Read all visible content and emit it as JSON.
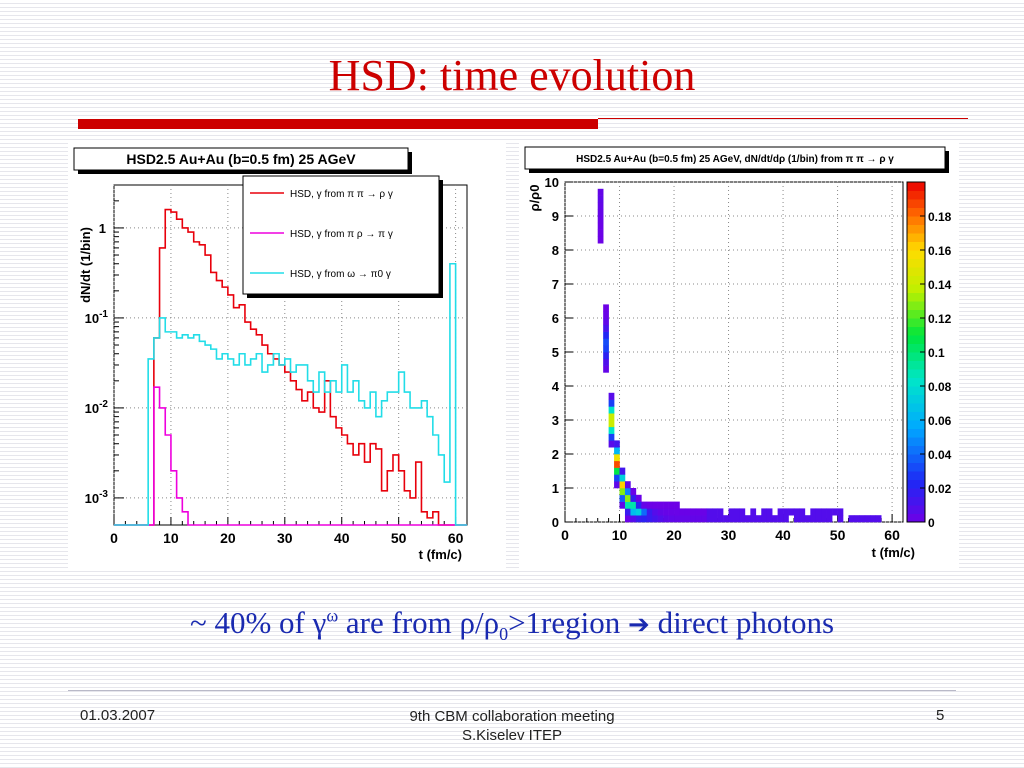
{
  "slide": {
    "title": "HSD: time evolution",
    "caption": {
      "prefix": "~ 40% of ",
      "gamma": "γ",
      "omega_sup": "ω",
      "mid": " are from ρ/ρ",
      "sub0": "0",
      "suffix": ">1region ",
      "arrow": "➔",
      "tail": " direct photons"
    },
    "footer": {
      "date": "01.03.2007",
      "event_line1": "9th CBM collaboration meeting",
      "event_line2": "S.Kiselev ITEP",
      "page": "5"
    },
    "accent_color": "#cc0000",
    "caption_color": "#1a2ab0"
  },
  "chart_data": [
    {
      "type": "line",
      "title": "HSD2.5 Au+Au (b=0.5 fm) 25 AGeV",
      "xlabel": "t (fm/c)",
      "ylabel": "dN/dt (1/bin)",
      "xlim": [
        0,
        62
      ],
      "ylim": [
        0.0005,
        3
      ],
      "yscale": "log",
      "x_ticks": [
        "0",
        "10",
        "20",
        "30",
        "40",
        "50",
        "60"
      ],
      "y_ticks": [
        "10-3",
        "10-2",
        "10-1",
        "1"
      ],
      "grid": true,
      "legend_position": "top-right",
      "bin_width": 1,
      "series": [
        {
          "name": "HSD, γ from π π → ρ γ",
          "color": "#e8000b",
          "x": [
            5,
            6,
            7,
            8,
            9,
            10,
            11,
            12,
            13,
            14,
            15,
            16,
            17,
            18,
            19,
            20,
            21,
            22,
            23,
            24,
            25,
            26,
            27,
            28,
            29,
            30,
            31,
            32,
            33,
            34,
            35,
            36,
            37,
            38,
            39,
            40,
            41,
            42,
            43,
            44,
            45,
            46,
            47,
            48,
            49,
            50,
            51,
            52,
            53,
            54,
            55,
            56,
            57,
            58,
            59,
            60
          ],
          "y": [
            0.0005,
            0.0005,
            0.06,
            0.6,
            1.6,
            1.5,
            1.25,
            1.0,
            0.9,
            0.7,
            0.65,
            0.5,
            0.32,
            0.26,
            0.22,
            0.18,
            0.13,
            0.14,
            0.09,
            0.075,
            0.065,
            0.05,
            0.04,
            0.035,
            0.03,
            0.025,
            0.02,
            0.016,
            0.012,
            0.015,
            0.01,
            0.009,
            0.02,
            0.008,
            0.006,
            0.005,
            0.004,
            0.003,
            0.004,
            0.0025,
            0.004,
            0.0035,
            0.0012,
            0.002,
            0.003,
            0.002,
            0.0012,
            0.001,
            0.0025,
            0.0007,
            0.0006,
            0.0007,
            0.0005,
            0.0005,
            0.0005,
            0.0005
          ]
        },
        {
          "name": "HSD, γ from π ρ → π γ",
          "color": "#ee00dd",
          "x": [
            5,
            6,
            7,
            8,
            9,
            10,
            11,
            12,
            13,
            14,
            15,
            16,
            17,
            18,
            19,
            20,
            21,
            22,
            23,
            24,
            25,
            26,
            27,
            28,
            29,
            30,
            31,
            32,
            33,
            34,
            35,
            36,
            37,
            38,
            39,
            40,
            41,
            42,
            43,
            44,
            45,
            46,
            47,
            48,
            49,
            50,
            51,
            52,
            53,
            54,
            55,
            56,
            57,
            58,
            59,
            60
          ],
          "y": [
            0.0005,
            0.0005,
            0.017,
            0.01,
            0.005,
            0.002,
            0.001,
            0.0007,
            0.0005,
            0.0005,
            0.0005,
            0.0005,
            0.0005,
            0.0005,
            0.0005,
            0.0005,
            0.0005,
            0.0005,
            0.0005,
            0.0005,
            0.0005,
            0.0005,
            0.0005,
            0.0005,
            0.0005,
            0.0005,
            0.0005,
            0.0005,
            0.0005,
            0.0005,
            0.0005,
            0.0005,
            0.0005,
            0.0005,
            0.0005,
            0.0005,
            0.0005,
            0.0005,
            0.0005,
            0.0005,
            0.0005,
            0.0005,
            0.0005,
            0.0005,
            0.0005,
            0.0005,
            0.0005,
            0.0005,
            0.0005,
            0.0005,
            0.0005,
            0.0005,
            0.0005,
            0.0005,
            0.0005,
            0.0005
          ]
        },
        {
          "name": "HSD, γ from ω → π0 γ",
          "color": "#22dde8",
          "x": [
            5,
            6,
            7,
            8,
            9,
            10,
            11,
            12,
            13,
            14,
            15,
            16,
            17,
            18,
            19,
            20,
            21,
            22,
            23,
            24,
            25,
            26,
            27,
            28,
            29,
            30,
            31,
            32,
            33,
            34,
            35,
            36,
            37,
            38,
            39,
            40,
            41,
            42,
            43,
            44,
            45,
            46,
            47,
            48,
            49,
            50,
            51,
            52,
            53,
            54,
            55,
            56,
            57,
            58,
            59,
            60
          ],
          "y": [
            0.0005,
            0.035,
            0.06,
            0.1,
            0.07,
            0.07,
            0.06,
            0.065,
            0.06,
            0.065,
            0.055,
            0.05,
            0.045,
            0.035,
            0.04,
            0.035,
            0.03,
            0.04,
            0.03,
            0.035,
            0.04,
            0.025,
            0.03,
            0.04,
            0.03,
            0.035,
            0.025,
            0.03,
            0.03,
            0.02,
            0.015,
            0.025,
            0.015,
            0.02,
            0.015,
            0.03,
            0.015,
            0.02,
            0.012,
            0.01,
            0.015,
            0.008,
            0.012,
            0.015,
            0.015,
            0.025,
            0.015,
            0.01,
            0.01,
            0.012,
            0.008,
            0.005,
            0.003,
            0.0015,
            0.4,
            0.0005
          ]
        }
      ]
    },
    {
      "type": "heatmap",
      "title": "HSD2.5 Au+Au (b=0.5 fm) 25 AGeV, dN/dt/dρ (1/bin) from π π → ρ γ",
      "xlabel": "t (fm/c)",
      "ylabel": "ρ/ρ0",
      "xlim": [
        0,
        62
      ],
      "ylim": [
        0,
        10
      ],
      "x_ticks": [
        "0",
        "10",
        "20",
        "30",
        "40",
        "50",
        "60"
      ],
      "y_ticks": [
        "0",
        "1",
        "2",
        "3",
        "4",
        "5",
        "6",
        "7",
        "8",
        "9",
        "10"
      ],
      "z_ticks": [
        "0",
        "0.02",
        "0.04",
        "0.06",
        "0.08",
        "0.1",
        "0.12",
        "0.14",
        "0.16",
        "0.18"
      ],
      "zlim": [
        0,
        0.2
      ],
      "grid": true,
      "decay_model": "z(t, ρ/ρ0) peaks near t≈10 fm/c, ρ/ρ0≈2; ρ/ρ0 falls from ~10 at t≈6 to ~0.1 by t≈30"
    }
  ]
}
